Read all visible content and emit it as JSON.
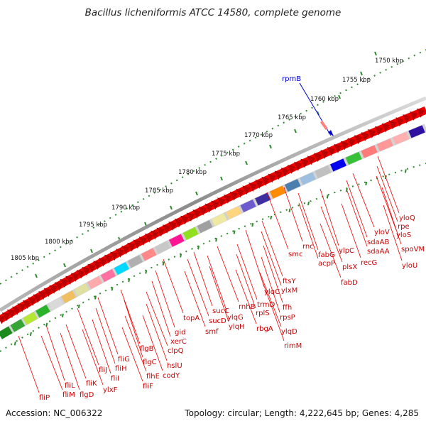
{
  "title": "Bacillus licheniformis ATCC 14580, complete genome",
  "footer": {
    "accession": "Accession: NC_006322",
    "summary": "Topology: circular; Length: 4,222,645 bp; Genes: 4,285"
  },
  "ruler_ticks": [
    "1750 kbp",
    "1755 kbp",
    "1760 kbp",
    "1765 kbp",
    "1770 kbp",
    "1775 kbp",
    "1780 kbp",
    "1785 kbp",
    "1790 kbp",
    "1795 kbp",
    "1800 kbp",
    "1805 kbp"
  ],
  "callout": {
    "gene": "rpmB"
  },
  "gene_labels": [
    "yloQ",
    "rpe",
    "yloS",
    "spoVM",
    "yloU",
    "yloV",
    "sdaAB",
    "sdaAA",
    "recG",
    "ylpC",
    "plsX",
    "fabD",
    "fabG",
    "acpP",
    "rnc",
    "smc",
    "ftsY",
    "ylxM",
    "ffh",
    "rpsP",
    "ylqD",
    "rimM",
    "trmD",
    "rplS",
    "ylqC",
    "rnhB",
    "rbgA",
    "ylqG",
    "ylqH",
    "sucC",
    "sucD",
    "smf",
    "topA",
    "gid",
    "xerC",
    "clpQ",
    "hslU",
    "codY",
    "flgB",
    "flgC",
    "flhE",
    "fliF",
    "fliG",
    "fliH",
    "fliI",
    "fliJ",
    "ylxF",
    "fliK",
    "flgD",
    "fliL",
    "fliM",
    "fliP"
  ],
  "colors": {
    "gene_label": "#cc0000",
    "callout": "#0000cc",
    "forward_strand": "#ff0000",
    "ruler_ticks": "#2e8b2e",
    "backbone": "#8c8c8c"
  }
}
